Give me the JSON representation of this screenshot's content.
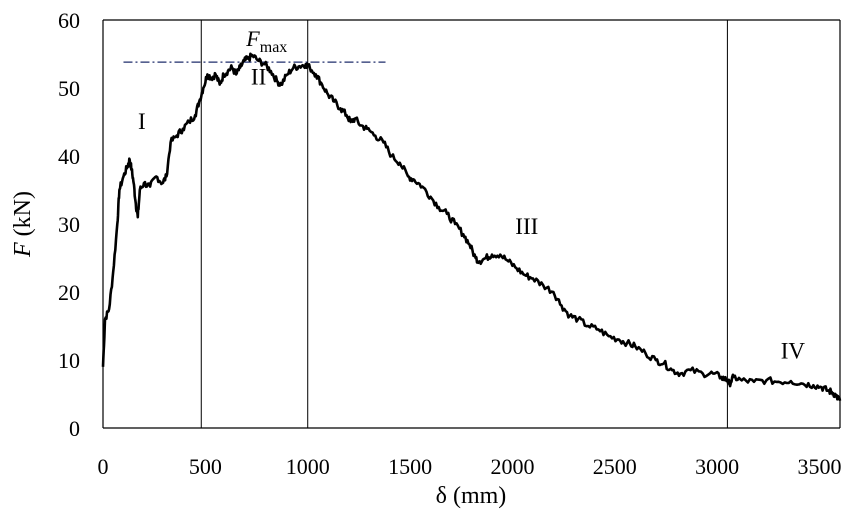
{
  "chart_data": {
    "type": "line",
    "xlabel": "δ (mm)",
    "ylabel_var": "F",
    "ylabel_unit": " (kN)",
    "xlim": [
      0,
      3600
    ],
    "ylim": [
      0,
      60
    ],
    "xticks": [
      0,
      500,
      1000,
      1500,
      2000,
      2500,
      3000,
      3500
    ],
    "yticks": [
      0,
      10,
      20,
      30,
      40,
      50,
      60
    ],
    "grid": false,
    "legend": "none",
    "vertical_markers_x": [
      480,
      1000,
      3050
    ],
    "fmax": {
      "label_main": "F",
      "label_sub": "max",
      "value": 53.8,
      "x_start": 100,
      "x_end": 1380
    },
    "regions": [
      {
        "label": "I",
        "x": 190,
        "y": 44
      },
      {
        "label": "II",
        "x": 760,
        "y": 50.5
      },
      {
        "label": "III",
        "x": 2070,
        "y": 28.5
      },
      {
        "label": "IV",
        "x": 3370,
        "y": 10.2
      }
    ],
    "series": [
      {
        "line_color": "#000000",
        "points": [
          [
            0,
            9
          ],
          [
            10,
            16
          ],
          [
            30,
            17.5
          ],
          [
            50,
            23
          ],
          [
            70,
            30
          ],
          [
            80,
            35
          ],
          [
            100,
            37
          ],
          [
            120,
            38.5
          ],
          [
            130,
            39.5
          ],
          [
            140,
            38
          ],
          [
            150,
            36
          ],
          [
            160,
            33
          ],
          [
            170,
            31
          ],
          [
            180,
            35
          ],
          [
            200,
            36
          ],
          [
            230,
            35.5
          ],
          [
            260,
            37
          ],
          [
            290,
            36
          ],
          [
            310,
            37
          ],
          [
            330,
            42
          ],
          [
            360,
            43
          ],
          [
            390,
            44
          ],
          [
            420,
            45
          ],
          [
            450,
            46
          ],
          [
            470,
            48
          ],
          [
            490,
            50
          ],
          [
            510,
            52
          ],
          [
            530,
            51.5
          ],
          [
            550,
            52
          ],
          [
            570,
            50.5
          ],
          [
            590,
            52
          ],
          [
            610,
            52.5
          ],
          [
            630,
            53
          ],
          [
            650,
            52
          ],
          [
            670,
            53
          ],
          [
            690,
            54
          ],
          [
            710,
            54.3
          ],
          [
            730,
            54.8
          ],
          [
            760,
            54
          ],
          [
            790,
            53.5
          ],
          [
            820,
            52.5
          ],
          [
            850,
            51
          ],
          [
            870,
            50.5
          ],
          [
            900,
            52
          ],
          [
            930,
            53
          ],
          [
            960,
            53.2
          ],
          [
            990,
            53.5
          ],
          [
            1010,
            53
          ],
          [
            1040,
            52
          ],
          [
            1070,
            50.5
          ],
          [
            1100,
            49
          ],
          [
            1130,
            48
          ],
          [
            1160,
            47
          ],
          [
            1190,
            46
          ],
          [
            1210,
            45
          ],
          [
            1230,
            45.5
          ],
          [
            1260,
            44.5
          ],
          [
            1290,
            44
          ],
          [
            1330,
            43
          ],
          [
            1370,
            42
          ],
          [
            1410,
            40
          ],
          [
            1450,
            39
          ],
          [
            1490,
            37
          ],
          [
            1520,
            36.5
          ],
          [
            1560,
            35.5
          ],
          [
            1600,
            34
          ],
          [
            1640,
            32.5
          ],
          [
            1680,
            31.5
          ],
          [
            1720,
            30
          ],
          [
            1760,
            28.5
          ],
          [
            1790,
            27
          ],
          [
            1820,
            25
          ],
          [
            1840,
            24.5
          ],
          [
            1870,
            25
          ],
          [
            1900,
            25.5
          ],
          [
            1940,
            25.5
          ],
          [
            1980,
            24.5
          ],
          [
            2020,
            23.5
          ],
          [
            2060,
            22.5
          ],
          [
            2100,
            22
          ],
          [
            2150,
            21
          ],
          [
            2200,
            20
          ],
          [
            2240,
            18
          ],
          [
            2280,
            16.5
          ],
          [
            2320,
            16
          ],
          [
            2370,
            15
          ],
          [
            2420,
            14.5
          ],
          [
            2470,
            13.5
          ],
          [
            2520,
            13
          ],
          [
            2560,
            12.5
          ],
          [
            2600,
            12
          ],
          [
            2650,
            11
          ],
          [
            2700,
            10
          ],
          [
            2740,
            9.5
          ],
          [
            2780,
            8.5
          ],
          [
            2820,
            8
          ],
          [
            2870,
            8.5
          ],
          [
            2930,
            8
          ],
          [
            2980,
            8
          ],
          [
            3020,
            7.5
          ],
          [
            3050,
            7
          ],
          [
            3060,
            6.5
          ],
          [
            3080,
            7.5
          ],
          [
            3120,
            7
          ],
          [
            3180,
            6.8
          ],
          [
            3240,
            7
          ],
          [
            3300,
            6.8
          ],
          [
            3360,
            6.9
          ],
          [
            3420,
            6.5
          ],
          [
            3470,
            6.3
          ],
          [
            3510,
            6
          ],
          [
            3540,
            5.5
          ],
          [
            3560,
            5.3
          ],
          [
            3580,
            4.8
          ],
          [
            3600,
            4
          ]
        ]
      }
    ]
  }
}
